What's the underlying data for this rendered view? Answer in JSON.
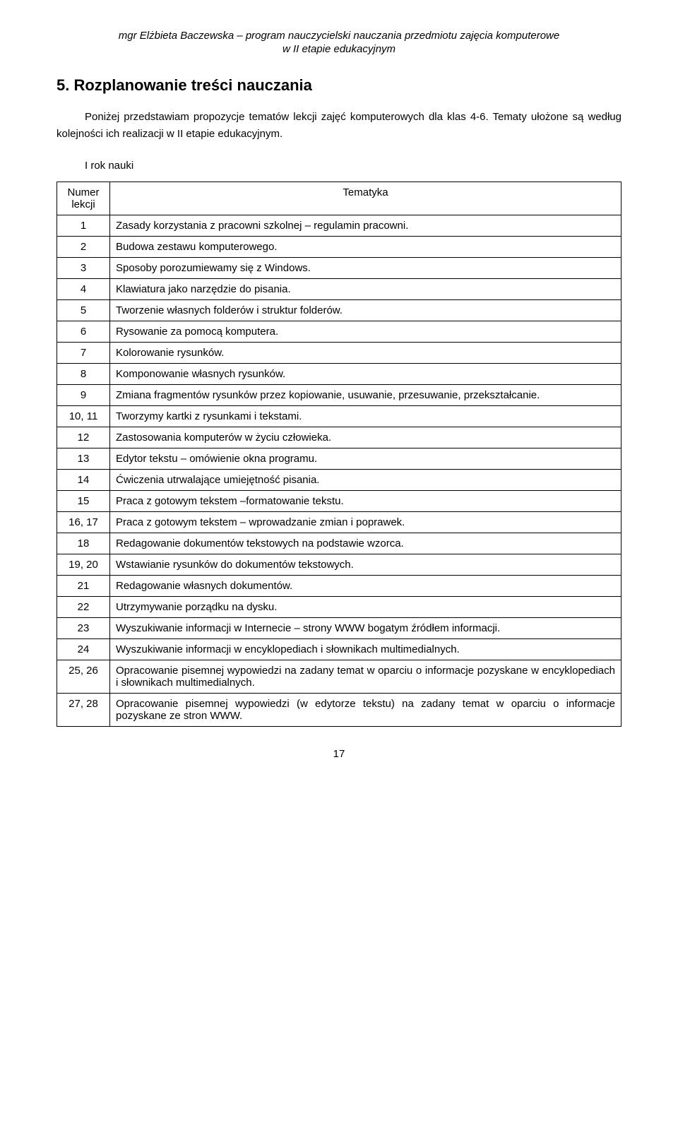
{
  "header": {
    "line1": "mgr Elżbieta Baczewska – program nauczycielski nauczania przedmiotu zajęcia komputerowe",
    "line2": "w II etapie edukacyjnym"
  },
  "section_title": "5. Rozplanowanie treści nauczania",
  "intro": "Poniżej przedstawiam propozycje tematów lekcji zajęć komputerowych dla klas 4-6. Tematy ułożone są według kolejności ich realizacji w II etapie edukacyjnym.",
  "year_label": "I rok nauki",
  "table": {
    "columns": [
      "Numer lekcji",
      "Tematyka"
    ],
    "rows": [
      [
        "1",
        "Zasady korzystania z pracowni szkolnej – regulamin pracowni."
      ],
      [
        "2",
        "Budowa zestawu komputerowego."
      ],
      [
        "3",
        "Sposoby porozumiewamy się z Windows."
      ],
      [
        "4",
        "Klawiatura jako narzędzie do pisania."
      ],
      [
        "5",
        "Tworzenie własnych folderów i struktur folderów."
      ],
      [
        "6",
        "Rysowanie za pomocą komputera."
      ],
      [
        "7",
        "Kolorowanie rysunków."
      ],
      [
        "8",
        "Komponowanie własnych rysunków."
      ],
      [
        "9",
        "Zmiana fragmentów rysunków przez kopiowanie, usuwanie, przesuwanie, przekształcanie."
      ],
      [
        "10, 11",
        "Tworzymy kartki z rysunkami i tekstami."
      ],
      [
        "12",
        "Zastosowania komputerów w życiu człowieka."
      ],
      [
        "13",
        "Edytor tekstu – omówienie okna programu."
      ],
      [
        "14",
        "Ćwiczenia utrwalające umiejętność pisania."
      ],
      [
        "15",
        "Praca z gotowym tekstem –formatowanie tekstu."
      ],
      [
        "16, 17",
        "Praca z gotowym tekstem – wprowadzanie zmian i poprawek."
      ],
      [
        "18",
        "Redagowanie dokumentów tekstowych na podstawie wzorca."
      ],
      [
        "19, 20",
        "Wstawianie rysunków do dokumentów tekstowych."
      ],
      [
        "21",
        "Redagowanie własnych dokumentów."
      ],
      [
        "22",
        "Utrzymywanie porządku na dysku."
      ],
      [
        "23",
        "Wyszukiwanie informacji w Internecie – strony WWW bogatym źródłem informacji."
      ],
      [
        "24",
        "Wyszukiwanie informacji w encyklopediach i słownikach multimedialnych."
      ],
      [
        "25, 26",
        "Opracowanie pisemnej wypowiedzi na zadany temat w oparciu o informacje pozyskane w encyklopediach i słownikach multimedialnych."
      ],
      [
        "27, 28",
        "Opracowanie pisemnej wypowiedzi (w edytorze tekstu) na zadany temat w oparciu o informacje pozyskane ze stron WWW."
      ]
    ]
  },
  "page_number": "17"
}
